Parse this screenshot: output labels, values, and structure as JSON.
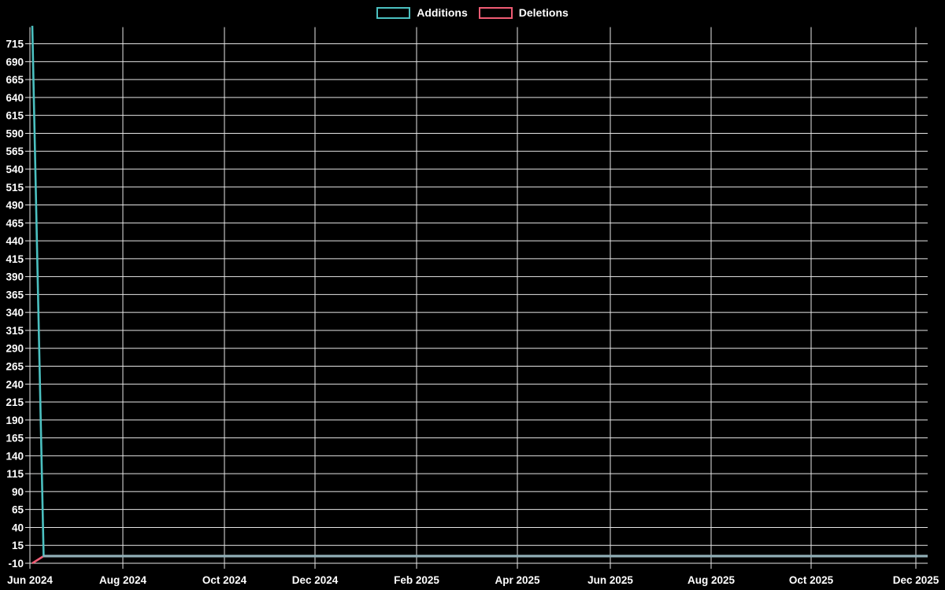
{
  "page": {
    "background_color": "#000000",
    "text_color": "#ffffff",
    "grid_color": "#e6e6e6"
  },
  "legend": {
    "position": "top-center",
    "items": [
      {
        "label": "Additions",
        "color": "#4bc0c0",
        "swatch": "outlined-box"
      },
      {
        "label": "Deletions",
        "color": "#f05c74",
        "swatch": "outlined-box"
      }
    ]
  },
  "chart_data": {
    "type": "line",
    "title": "",
    "xlabel": "",
    "ylabel": "",
    "grid": true,
    "legend_position": "top",
    "x_axis": {
      "tick_labels": [
        "Jun 2024",
        "Aug 2024",
        "Oct 2024",
        "Dec 2024",
        "Feb 2025",
        "Apr 2025",
        "Jun 2025",
        "Aug 2025",
        "Oct 2025",
        "Dec 2025"
      ],
      "start": "Jun 2024",
      "end": "Dec 2025",
      "interval": "weekly",
      "num_points": 80
    },
    "y_axis": {
      "min": -10,
      "max": 742,
      "tick_step": 25,
      "ticks": [
        -10,
        15,
        40,
        65,
        90,
        115,
        140,
        165,
        190,
        215,
        240,
        265,
        290,
        315,
        340,
        365,
        390,
        415,
        440,
        465,
        490,
        515,
        540,
        565,
        590,
        615,
        640,
        665,
        690,
        715
      ]
    },
    "series": [
      {
        "name": "Additions",
        "color": "#4bc0c0",
        "line_width": 2.6,
        "values_spec": {
          "first": 740,
          "rest": 0,
          "count": 80
        },
        "description": "Spike of ~740 additions in the first week of Jun 2024, then flat at 0 through Dec 2025"
      },
      {
        "name": "Deletions",
        "color": "#f05c74",
        "line_width": 2.6,
        "values_spec": {
          "first": -10,
          "rest": 0,
          "count": 80
        },
        "description": "-10 deletions in the first week of Jun 2024, then flat at 0 through Dec 2025"
      }
    ],
    "overlap_line_color": "#8fadb5"
  }
}
